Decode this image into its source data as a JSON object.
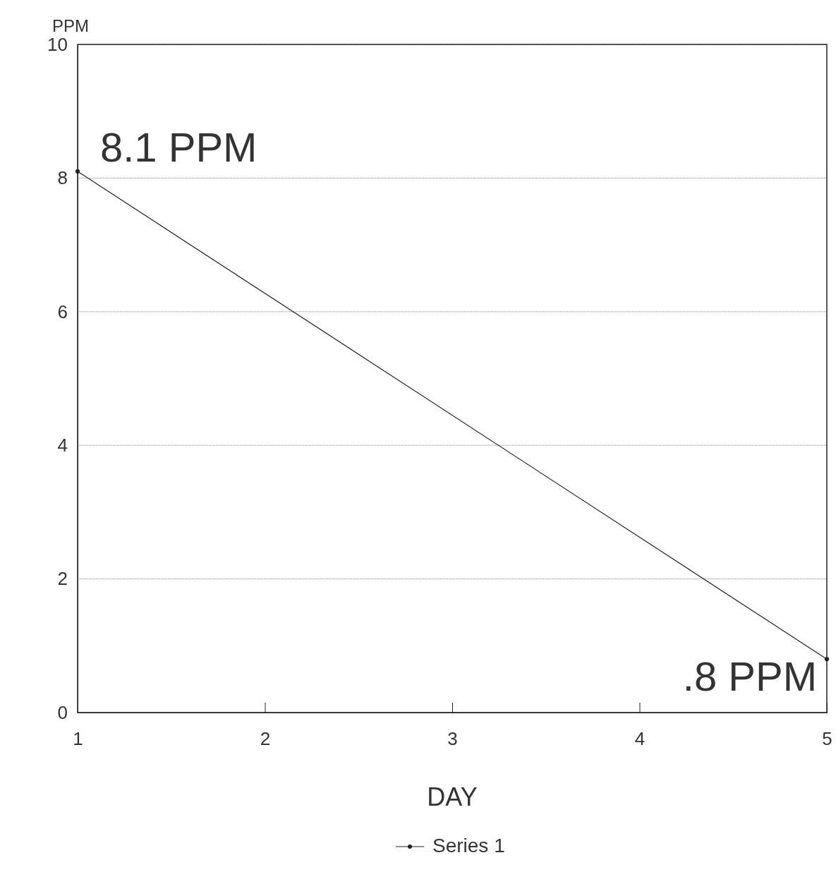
{
  "chart_data": {
    "type": "line",
    "xlabel": "DAY",
    "ylabel": "PPM",
    "x": [
      1,
      5
    ],
    "series": [
      {
        "name": "Series 1",
        "color": "#222222",
        "values": [
          8.1,
          0.8
        ]
      }
    ],
    "xlim": [
      1,
      5
    ],
    "xticks": [
      1,
      2,
      3,
      4,
      5
    ],
    "ylim": [
      0,
      10
    ],
    "yticks": [
      0,
      2,
      4,
      6,
      8,
      10
    ],
    "grid": "y",
    "legend": "bottom",
    "marker": "circle",
    "line_style": "solid",
    "annotations": [
      {
        "text": "8.1 PPM",
        "x": 1,
        "y": 8.1
      },
      {
        "text": ".8 PPM",
        "x": 5,
        "y": 0.8
      }
    ]
  }
}
